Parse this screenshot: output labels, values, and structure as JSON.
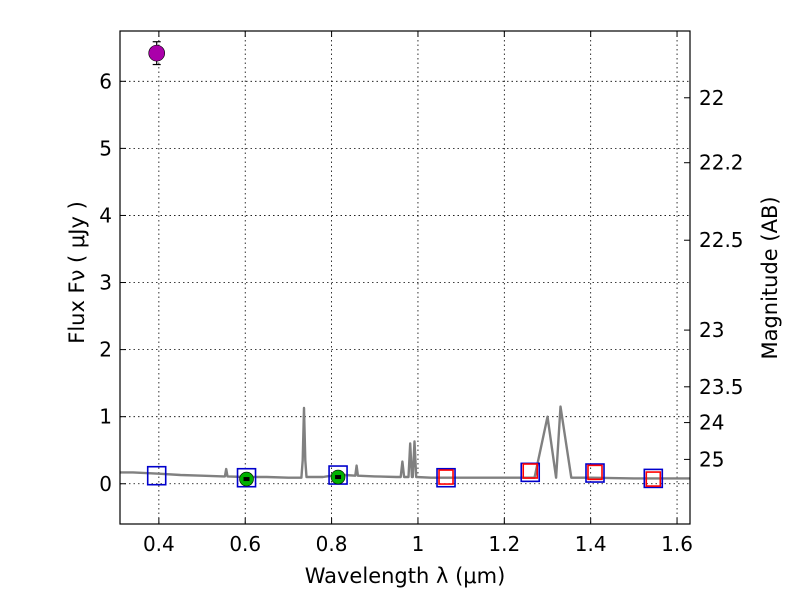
{
  "chart_data": {
    "type": "scatter",
    "xlabel": "Wavelength  λ (μm)",
    "ylabel": "Flux  Fν  ( μJy )",
    "y2label": "Magnitude (AB)",
    "xlim": [
      0.31,
      1.63
    ],
    "ylim": [
      -0.6,
      6.75
    ],
    "grid": true,
    "xticks": [
      {
        "value": 0.4,
        "label": "0.4"
      },
      {
        "value": 0.6,
        "label": "0.6"
      },
      {
        "value": 0.8,
        "label": "0.8"
      },
      {
        "value": 1.0,
        "label": "1"
      },
      {
        "value": 1.2,
        "label": "1.2"
      },
      {
        "value": 1.4,
        "label": "1.4"
      },
      {
        "value": 1.6,
        "label": "1.6"
      }
    ],
    "yticks": [
      {
        "value": 0,
        "label": "0"
      },
      {
        "value": 1,
        "label": "1"
      },
      {
        "value": 2,
        "label": "2"
      },
      {
        "value": 3,
        "label": "3"
      },
      {
        "value": 4,
        "label": "4"
      },
      {
        "value": 5,
        "label": "5"
      },
      {
        "value": 6,
        "label": "6"
      }
    ],
    "y2ticks": [
      {
        "value": 22,
        "label": "22"
      },
      {
        "value": 22.2,
        "label": "22.2"
      },
      {
        "value": 22.5,
        "label": "22.5"
      },
      {
        "value": 23,
        "label": "23"
      },
      {
        "value": 23.5,
        "label": "23.5"
      },
      {
        "value": 24,
        "label": "24"
      },
      {
        "value": 25,
        "label": "25"
      }
    ],
    "template_spectrum": {
      "color": "#808080",
      "points": [
        [
          0.31,
          0.17
        ],
        [
          0.34,
          0.17
        ],
        [
          0.4,
          0.15
        ],
        [
          0.45,
          0.13
        ],
        [
          0.5,
          0.12
        ],
        [
          0.55,
          0.11
        ],
        [
          0.553,
          0.11
        ],
        [
          0.556,
          0.22
        ],
        [
          0.559,
          0.11
        ],
        [
          0.6,
          0.1
        ],
        [
          0.65,
          0.1
        ],
        [
          0.7,
          0.09
        ],
        [
          0.73,
          0.09
        ],
        [
          0.733,
          0.35
        ],
        [
          0.736,
          1.13
        ],
        [
          0.739,
          0.35
        ],
        [
          0.742,
          0.1
        ],
        [
          0.78,
          0.1
        ],
        [
          0.8,
          0.12
        ],
        [
          0.83,
          0.13
        ],
        [
          0.855,
          0.12
        ],
        [
          0.858,
          0.27
        ],
        [
          0.861,
          0.12
        ],
        [
          0.9,
          0.11
        ],
        [
          0.95,
          0.1
        ],
        [
          0.96,
          0.1
        ],
        [
          0.964,
          0.33
        ],
        [
          0.968,
          0.1
        ],
        [
          0.978,
          0.1
        ],
        [
          0.982,
          0.6
        ],
        [
          0.986,
          0.1
        ],
        [
          0.988,
          0.1
        ],
        [
          0.992,
          0.63
        ],
        [
          0.996,
          0.1
        ],
        [
          1.03,
          0.09
        ],
        [
          1.1,
          0.09
        ],
        [
          1.2,
          0.09
        ],
        [
          1.27,
          0.09
        ],
        [
          1.3,
          1.0
        ],
        [
          1.32,
          0.09
        ],
        [
          1.33,
          1.15
        ],
        [
          1.355,
          0.09
        ],
        [
          1.4,
          0.09
        ],
        [
          1.5,
          0.08
        ],
        [
          1.6,
          0.08
        ],
        [
          1.63,
          0.08
        ]
      ]
    },
    "series": [
      {
        "marker": "square",
        "color": "#0000cc",
        "points": [
          {
            "x": 0.395,
            "y": 0.12
          },
          {
            "x": 0.603,
            "y": 0.09
          },
          {
            "x": 0.815,
            "y": 0.13
          },
          {
            "x": 1.065,
            "y": 0.09
          },
          {
            "x": 1.26,
            "y": 0.17
          },
          {
            "x": 1.41,
            "y": 0.16
          },
          {
            "x": 1.545,
            "y": 0.08
          }
        ]
      },
      {
        "marker": "square",
        "color": "#ff0000",
        "points": [
          {
            "x": 1.065,
            "y": 0.1
          },
          {
            "x": 1.26,
            "y": 0.19
          },
          {
            "x": 1.41,
            "y": 0.17
          },
          {
            "x": 1.545,
            "y": 0.07
          }
        ]
      },
      {
        "marker": "circle",
        "color": "#00b000",
        "points": [
          {
            "x": 0.603,
            "y": 0.07,
            "yerr": 0.05
          },
          {
            "x": 0.815,
            "y": 0.1,
            "yerr": 0.05
          }
        ]
      },
      {
        "marker": "circle",
        "color": "#aa00aa",
        "points": [
          {
            "x": 0.395,
            "y": 6.42,
            "yerr": 0.17
          }
        ]
      }
    ]
  }
}
